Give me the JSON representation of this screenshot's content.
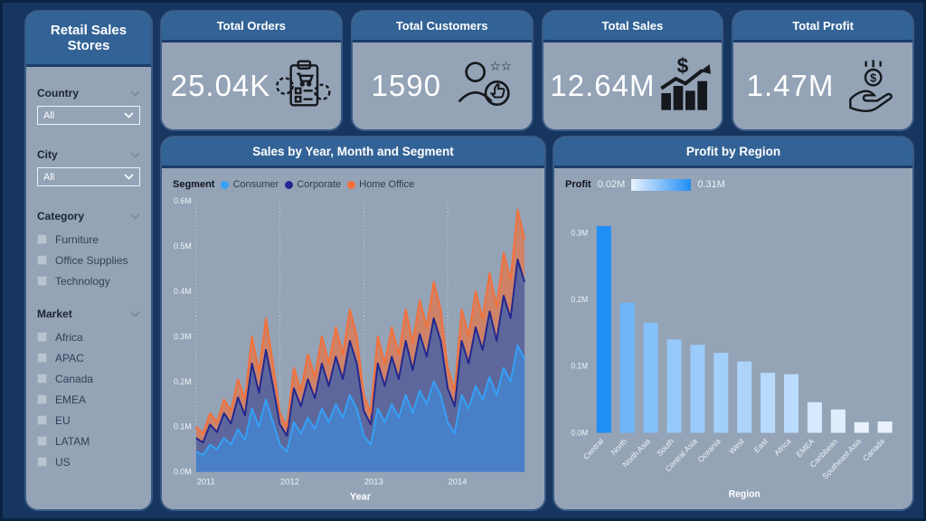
{
  "sidebar": {
    "title": "Retail Sales Stores",
    "filters": [
      {
        "label": "Country",
        "type": "dropdown",
        "value": "All"
      },
      {
        "label": "City",
        "type": "dropdown",
        "value": "All"
      },
      {
        "label": "Category",
        "type": "checkboxes",
        "options": [
          "Furniture",
          "Office Supplies",
          "Technology"
        ]
      },
      {
        "label": "Market",
        "type": "checkboxes",
        "options": [
          "Africa",
          "APAC",
          "Canada",
          "EMEA",
          "EU",
          "LATAM",
          "US"
        ]
      }
    ]
  },
  "kpis": [
    {
      "label": "Total Orders",
      "value": "25.04K",
      "icon": "orders-clipboard-cart-icon"
    },
    {
      "label": "Total Customers",
      "value": "1590",
      "icon": "customers-thumbsup-icon"
    },
    {
      "label": "Total Sales",
      "value": "12.64M",
      "icon": "sales-growth-dollar-icon"
    },
    {
      "label": "Total Profit",
      "value": "1.47M",
      "icon": "profit-hand-coin-icon"
    }
  ],
  "colors": {
    "page_bg": "#16355f",
    "card_header": "#336396",
    "card_body": "#94a3b6",
    "consumer": "#35a1f7",
    "corporate": "#22288f",
    "home_office": "#f4703a",
    "bar_min": "#e9f2fd",
    "bar_max": "#1f8ef5",
    "tick_text": "#f0f4f9",
    "icon": "#15181d"
  },
  "chart_data": [
    {
      "type": "area",
      "stacked": true,
      "title": "Sales by Year, Month and Segment",
      "legend_title": "Segment",
      "xlabel": "Year",
      "ylabel": "",
      "ylim": [
        0,
        0.6
      ],
      "y_ticks": [
        0,
        0.1,
        0.2,
        0.3,
        0.4,
        0.5,
        0.6
      ],
      "y_unit": "M",
      "years": [
        "2011",
        "2012",
        "2013",
        "2014"
      ],
      "months_per_year": 12,
      "grid": "dotted-vertical-per-year",
      "series": [
        {
          "name": "Consumer",
          "color": "#35a1f7",
          "values": [
            0.045,
            0.038,
            0.06,
            0.05,
            0.075,
            0.06,
            0.095,
            0.07,
            0.14,
            0.1,
            0.16,
            0.11,
            0.06,
            0.045,
            0.11,
            0.085,
            0.12,
            0.095,
            0.14,
            0.11,
            0.15,
            0.12,
            0.17,
            0.14,
            0.08,
            0.06,
            0.14,
            0.11,
            0.15,
            0.12,
            0.17,
            0.13,
            0.18,
            0.15,
            0.2,
            0.17,
            0.11,
            0.085,
            0.17,
            0.14,
            0.19,
            0.16,
            0.21,
            0.17,
            0.23,
            0.2,
            0.28,
            0.25
          ]
        },
        {
          "name": "Corporate",
          "color": "#22288f",
          "values": [
            0.03,
            0.027,
            0.045,
            0.038,
            0.055,
            0.047,
            0.07,
            0.055,
            0.1,
            0.075,
            0.11,
            0.08,
            0.045,
            0.035,
            0.075,
            0.06,
            0.085,
            0.068,
            0.1,
            0.08,
            0.105,
            0.085,
            0.12,
            0.1,
            0.055,
            0.045,
            0.1,
            0.08,
            0.105,
            0.085,
            0.12,
            0.095,
            0.125,
            0.105,
            0.14,
            0.12,
            0.075,
            0.06,
            0.12,
            0.1,
            0.13,
            0.11,
            0.145,
            0.12,
            0.16,
            0.14,
            0.19,
            0.17
          ]
        },
        {
          "name": "Home Office",
          "color": "#f4703a",
          "values": [
            0.025,
            0.02,
            0.025,
            0.022,
            0.03,
            0.028,
            0.04,
            0.035,
            0.06,
            0.045,
            0.07,
            0.05,
            0.025,
            0.02,
            0.045,
            0.035,
            0.055,
            0.047,
            0.06,
            0.05,
            0.065,
            0.055,
            0.07,
            0.06,
            0.035,
            0.025,
            0.06,
            0.05,
            0.065,
            0.055,
            0.07,
            0.06,
            0.075,
            0.065,
            0.08,
            0.07,
            0.045,
            0.035,
            0.07,
            0.06,
            0.08,
            0.07,
            0.085,
            0.075,
            0.095,
            0.085,
            0.11,
            0.095
          ]
        }
      ]
    },
    {
      "type": "bar",
      "title": "Profit by Region",
      "legend": {
        "label": "Profit",
        "min_label": "0.02M",
        "max_label": "0.31M"
      },
      "xlabel": "Region",
      "ylabel": "",
      "ylim": [
        0,
        0.34
      ],
      "y_ticks": [
        0,
        0.1,
        0.2,
        0.3
      ],
      "y_unit": "M",
      "grid": "off",
      "categories": [
        "Central",
        "North",
        "North Asia",
        "South",
        "Central Asia",
        "Oceania",
        "West",
        "East",
        "Africa",
        "EMEA",
        "Caribbean",
        "Southeast Asia",
        "Canada"
      ],
      "values": [
        0.31,
        0.195,
        0.165,
        0.14,
        0.132,
        0.12,
        0.107,
        0.09,
        0.088,
        0.046,
        0.035,
        0.016,
        0.017
      ],
      "color_scale": {
        "min_value": 0.02,
        "max_value": 0.31,
        "min_color": "#e9f2fd",
        "max_color": "#1f8ef5"
      }
    }
  ]
}
